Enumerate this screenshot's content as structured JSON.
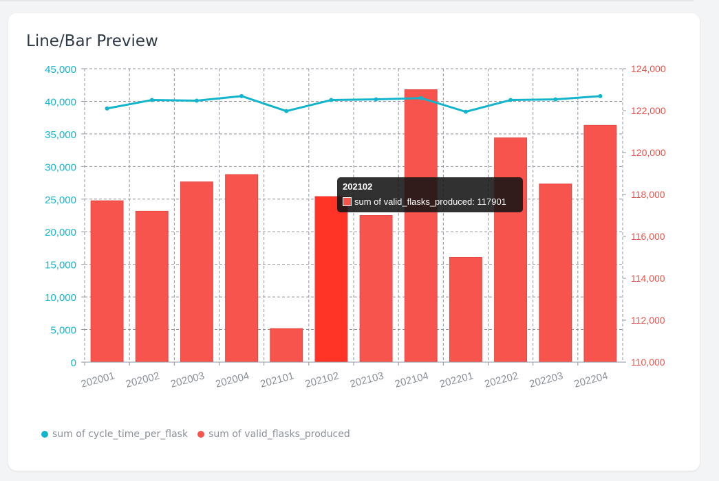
{
  "card": {
    "title": "Line/Bar Preview"
  },
  "chart_data": {
    "type": "bar",
    "categories": [
      "202001",
      "202002",
      "202003",
      "202004",
      "202101",
      "202102",
      "202103",
      "202104",
      "202201",
      "202202",
      "202203",
      "202204"
    ],
    "series": [
      {
        "name": "sum of cycle_time_per_flask",
        "type": "line",
        "axis": "left",
        "color": "#12b5cb",
        "values": [
          38900,
          40200,
          40100,
          40800,
          38500,
          40200,
          40300,
          40500,
          38400,
          40200,
          40300,
          40800
        ]
      },
      {
        "name": "sum of valid_flasks_produced",
        "type": "bar",
        "axis": "right",
        "color": "#f8544e",
        "highlight_color": "#ff3426",
        "values": [
          117700,
          117200,
          118600,
          118950,
          111600,
          117901,
          117000,
          123000,
          115000,
          120700,
          118500,
          121300
        ]
      }
    ],
    "y_left": {
      "ylim": [
        0,
        45000
      ],
      "ticks": [
        "0",
        "5,000",
        "10,000",
        "15,000",
        "20,000",
        "25,000",
        "30,000",
        "35,000",
        "40,000",
        "45,000"
      ],
      "color": "#12b5cb"
    },
    "y_right": {
      "ylim": [
        110000,
        124000
      ],
      "ticks": [
        "110,000",
        "112,000",
        "114,000",
        "116,000",
        "118,000",
        "120,000",
        "122,000",
        "124,000"
      ],
      "color": "#e8524c"
    },
    "grid": true,
    "legend": "bottom-left",
    "highlighted_index": 5,
    "tooltip": {
      "title": "202102",
      "label": "sum of valid_flasks_produced: 117901"
    }
  }
}
